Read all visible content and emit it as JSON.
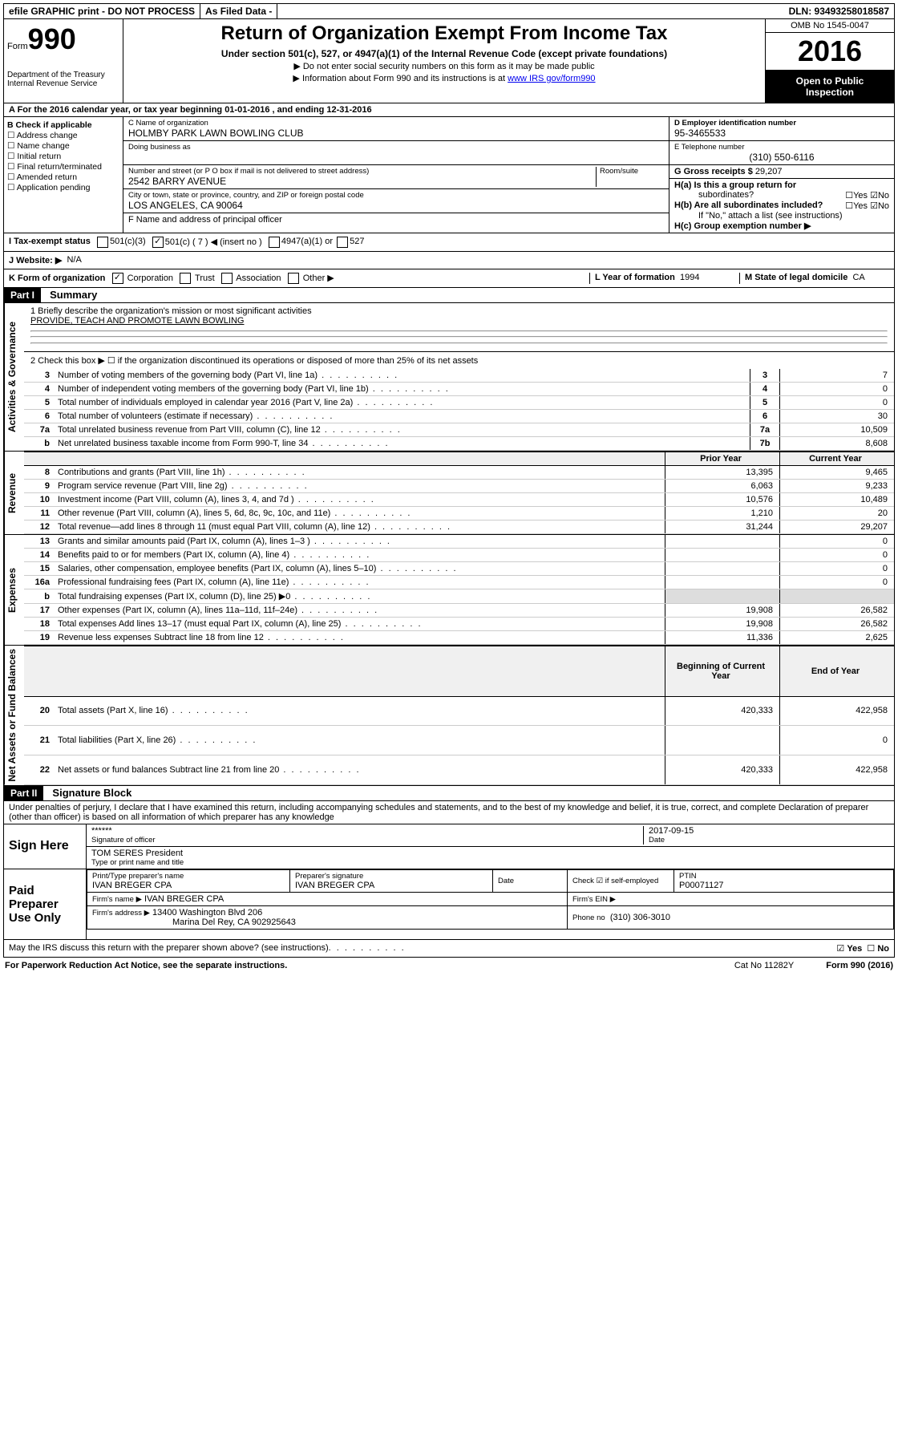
{
  "topbar": {
    "efile": "efile GRAPHIC print - DO NOT PROCESS",
    "asfiled": "As Filed Data -",
    "dln": "DLN: 93493258018587"
  },
  "header": {
    "form_prefix": "Form",
    "form_number": "990",
    "dept1": "Department of the Treasury",
    "dept2": "Internal Revenue Service",
    "title": "Return of Organization Exempt From Income Tax",
    "subtitle": "Under section 501(c), 527, or 4947(a)(1) of the Internal Revenue Code (except private foundations)",
    "note1": "▶ Do not enter social security numbers on this form as it may be made public",
    "note2_pre": "▶ Information about Form 990 and its instructions is at ",
    "note2_link": "www IRS gov/form990",
    "omb": "OMB No 1545-0047",
    "year": "2016",
    "open1": "Open to Public",
    "open2": "Inspection"
  },
  "a": "A  For the 2016 calendar year, or tax year beginning 01-01-2016  , and ending 12-31-2016",
  "b": {
    "label": "B Check if applicable",
    "c1": "Address change",
    "c2": "Name change",
    "c3": "Initial return",
    "c4": "Final return/terminated",
    "c5": "Amended return",
    "c6": "Application pending"
  },
  "c": {
    "name_label": "C Name of organization",
    "name": "HOLMBY PARK LAWN BOWLING CLUB",
    "dba_label": "Doing business as",
    "addr_label": "Number and street (or P O  box if mail is not delivered to street address)",
    "room_label": "Room/suite",
    "addr": "2542 BARRY AVENUE",
    "city_label": "City or town, state or province, country, and ZIP or foreign postal code",
    "city": "LOS ANGELES, CA  90064",
    "f_label": "F  Name and address of principal officer"
  },
  "d": {
    "label": "D Employer identification number",
    "val": "95-3465533"
  },
  "e": {
    "label": "E Telephone number",
    "val": "(310) 550-6116"
  },
  "g": {
    "label": "G Gross receipts $",
    "val": "29,207"
  },
  "h": {
    "a": "H(a)  Is this a group return for",
    "a2": "subordinates?",
    "b": "H(b) Are all subordinates included?",
    "note": "If \"No,\" attach a list  (see instructions)",
    "c": "H(c)  Group exemption number ▶",
    "yes": "Yes",
    "no": "No"
  },
  "i": {
    "label": "I  Tax-exempt status",
    "o1": "501(c)(3)",
    "o2": "501(c) ( 7 ) ◀ (insert no )",
    "o3": "4947(a)(1) or",
    "o4": "527"
  },
  "j": {
    "label": "J  Website: ▶",
    "val": "N/A"
  },
  "k": {
    "label": "K Form of organization",
    "o1": "Corporation",
    "o2": "Trust",
    "o3": "Association",
    "o4": "Other ▶"
  },
  "l": {
    "label": "L Year of formation",
    "val": "1994"
  },
  "m": {
    "label": "M State of legal domicile",
    "val": "CA"
  },
  "part1": {
    "num": "Part I",
    "title": "Summary"
  },
  "summary": {
    "l1": "1 Briefly describe the organization's mission or most significant activities",
    "mission": "PROVIDE, TEACH AND PROMOTE LAWN BOWLING",
    "l2": "2  Check this box ▶ ☐  if the organization discontinued its operations or disposed of more than 25% of its net assets"
  },
  "sections": {
    "gov": "Activities & Governance",
    "rev": "Revenue",
    "exp": "Expenses",
    "net": "Net Assets or Fund Balances"
  },
  "rows1": [
    {
      "n": "3",
      "d": "Number of voting members of the governing body (Part VI, line 1a)",
      "b": "3",
      "v": "7"
    },
    {
      "n": "4",
      "d": "Number of independent voting members of the governing body (Part VI, line 1b)",
      "b": "4",
      "v": "0"
    },
    {
      "n": "5",
      "d": "Total number of individuals employed in calendar year 2016 (Part V, line 2a)",
      "b": "5",
      "v": "0"
    },
    {
      "n": "6",
      "d": "Total number of volunteers (estimate if necessary)",
      "b": "6",
      "v": "30"
    },
    {
      "n": "7a",
      "d": "Total unrelated business revenue from Part VIII, column (C), line 12",
      "b": "7a",
      "v": "10,509"
    },
    {
      "n": "b",
      "d": "Net unrelated business taxable income from Form 990-T, line 34",
      "b": "7b",
      "v": "8,608"
    }
  ],
  "hdr2": {
    "prior": "Prior Year",
    "curr": "Current Year"
  },
  "rows2": [
    {
      "n": "8",
      "d": "Contributions and grants (Part VIII, line 1h)",
      "p": "13,395",
      "c": "9,465"
    },
    {
      "n": "9",
      "d": "Program service revenue (Part VIII, line 2g)",
      "p": "6,063",
      "c": "9,233"
    },
    {
      "n": "10",
      "d": "Investment income (Part VIII, column (A), lines 3, 4, and 7d )",
      "p": "10,576",
      "c": "10,489"
    },
    {
      "n": "11",
      "d": "Other revenue (Part VIII, column (A), lines 5, 6d, 8c, 9c, 10c, and 11e)",
      "p": "1,210",
      "c": "20"
    },
    {
      "n": "12",
      "d": "Total revenue—add lines 8 through 11 (must equal Part VIII, column (A), line 12)",
      "p": "31,244",
      "c": "29,207"
    }
  ],
  "rows3": [
    {
      "n": "13",
      "d": "Grants and similar amounts paid (Part IX, column (A), lines 1–3 )",
      "p": "",
      "c": "0"
    },
    {
      "n": "14",
      "d": "Benefits paid to or for members (Part IX, column (A), line 4)",
      "p": "",
      "c": "0"
    },
    {
      "n": "15",
      "d": "Salaries, other compensation, employee benefits (Part IX, column (A), lines 5–10)",
      "p": "",
      "c": "0"
    },
    {
      "n": "16a",
      "d": "Professional fundraising fees (Part IX, column (A), line 11e)",
      "p": "",
      "c": "0"
    },
    {
      "n": "b",
      "d": "Total fundraising expenses (Part IX, column (D), line 25) ▶0",
      "p": "SHADE",
      "c": "SHADE"
    },
    {
      "n": "17",
      "d": "Other expenses (Part IX, column (A), lines 11a–11d, 11f–24e)",
      "p": "19,908",
      "c": "26,582"
    },
    {
      "n": "18",
      "d": "Total expenses  Add lines 13–17 (must equal Part IX, column (A), line 25)",
      "p": "19,908",
      "c": "26,582"
    },
    {
      "n": "19",
      "d": "Revenue less expenses  Subtract line 18 from line 12",
      "p": "11,336",
      "c": "2,625"
    }
  ],
  "hdr3": {
    "beg": "Beginning of Current Year",
    "end": "End of Year"
  },
  "rows4": [
    {
      "n": "20",
      "d": "Total assets (Part X, line 16)",
      "p": "420,333",
      "c": "422,958"
    },
    {
      "n": "21",
      "d": "Total liabilities (Part X, line 26)",
      "p": "",
      "c": "0"
    },
    {
      "n": "22",
      "d": "Net assets or fund balances  Subtract line 21 from line 20",
      "p": "420,333",
      "c": "422,958"
    }
  ],
  "part2": {
    "num": "Part II",
    "title": "Signature Block"
  },
  "perjury": "Under penalties of perjury, I declare that I have examined this return, including accompanying schedules and statements, and to the best of my knowledge and belief, it is true, correct, and complete  Declaration of preparer (other than officer) is based on all information of which preparer has any knowledge",
  "sign": {
    "here": "Sign Here",
    "stars": "******",
    "sig_label": "Signature of officer",
    "date": "2017-09-15",
    "date_label": "Date",
    "name": "TOM SERES  President",
    "name_label": "Type or print name and title"
  },
  "prep": {
    "title": "Paid Preparer Use Only",
    "name_label": "Print/Type preparer's name",
    "name": "IVAN BREGER CPA",
    "sig_label": "Preparer's signature",
    "sig": "IVAN BREGER CPA",
    "date_label": "Date",
    "check_label": "Check ☑ if self-employed",
    "ptin_label": "PTIN",
    "ptin": "P00071127",
    "firm_label": "Firm's name    ▶",
    "firm": "IVAN BREGER CPA",
    "ein_label": "Firm's EIN ▶",
    "addr_label": "Firm's address ▶",
    "addr": "13400 Washington Blvd 206",
    "addr2": "Marina Del Rey, CA  902925643",
    "phone_label": "Phone no",
    "phone": "(310) 306-3010"
  },
  "discuss": "May the IRS discuss this return with the preparer shown above? (see instructions)",
  "footer": {
    "l": "For Paperwork Reduction Act Notice, see the separate instructions.",
    "m": "Cat  No  11282Y",
    "r": "Form 990 (2016)"
  }
}
